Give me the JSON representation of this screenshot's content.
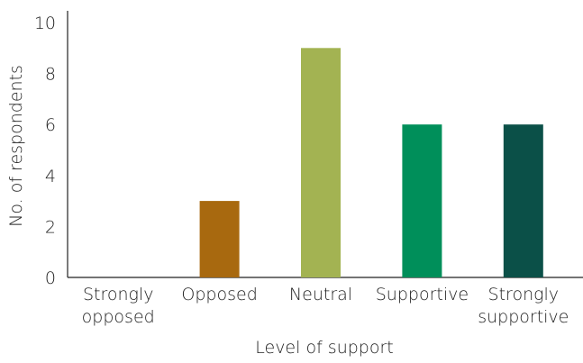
{
  "chart_data": {
    "type": "bar",
    "categories": [
      [
        "Strongly",
        "opposed"
      ],
      [
        "Opposed"
      ],
      [
        "Neutral"
      ],
      [
        "Supportive"
      ],
      [
        "Strongly",
        "supportive"
      ]
    ],
    "values": [
      0,
      3,
      9,
      6,
      6
    ],
    "colors": [
      "#ffffff",
      "#a8690f",
      "#a3b352",
      "#008f5a",
      "#0b5048"
    ],
    "xlabel": "Level of support",
    "ylabel": "No. of respondents",
    "ylim": [
      0,
      10
    ],
    "yticks": [
      "0",
      "2",
      "4",
      "6",
      "8",
      "10"
    ],
    "grid": false,
    "legend": "none"
  }
}
